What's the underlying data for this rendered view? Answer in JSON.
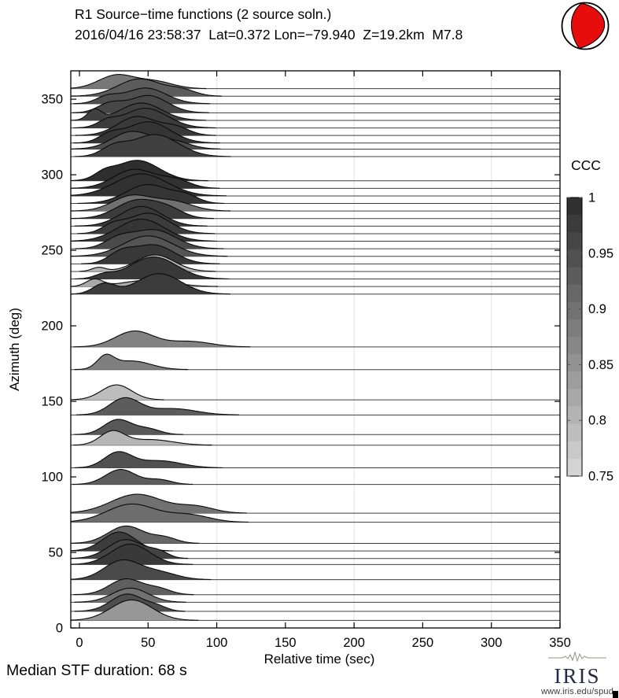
{
  "chart_data": {
    "type": "area",
    "title": "R1 Source−time functions (2 source soln.)",
    "subtitle": "2016/04/16 23:58:37  Lat=0.372 Lon=−79.940  Z=19.2km  M7.8",
    "xlabel": "Relative time (sec)",
    "ylabel": "Azimuth (deg)",
    "footer_note": "Median STF duration: 68 s",
    "x_axis": {
      "min": -6.3,
      "max": 350,
      "ticks": [
        0,
        50,
        100,
        150,
        200,
        250,
        300,
        350
      ],
      "gridlines": [
        100,
        200,
        300
      ]
    },
    "y_axis": {
      "min": 0,
      "max": 368.8,
      "ticks": [
        0,
        50,
        100,
        150,
        200,
        250,
        300,
        350
      ]
    },
    "colorbar": {
      "title": "CCC",
      "min": 0.75,
      "max": 1,
      "segments": 16,
      "ticks": [
        {
          "v": 1,
          "label": "1"
        },
        {
          "v": 0.95,
          "label": "0.95"
        },
        {
          "v": 0.9,
          "label": "0.9"
        },
        {
          "v": 0.85,
          "label": "0.85"
        },
        {
          "v": 0.8,
          "label": "0.8"
        },
        {
          "v": 0.75,
          "label": "0.75"
        }
      ],
      "color_dark": "#2b2b2b",
      "color_light": "#d9d9d9"
    },
    "beachball": {
      "red": "#e80d0d"
    },
    "traces": [
      {
        "az": 357,
        "ccc": 0.89,
        "bumps": [
          [
            27,
            13,
            17
          ],
          [
            55,
            13,
            9
          ]
        ]
      },
      {
        "az": 352,
        "ccc": 0.93,
        "bumps": [
          [
            44,
            16,
            22
          ],
          [
            75,
            10,
            7
          ]
        ]
      },
      {
        "az": 347,
        "ccc": 0.95,
        "bumps": [
          [
            48,
            15,
            20
          ],
          [
            20,
            8,
            8
          ]
        ]
      },
      {
        "az": 341,
        "ccc": 0.96,
        "bumps": [
          [
            50,
            14,
            22
          ],
          [
            22,
            9,
            11
          ]
        ]
      },
      {
        "az": 336,
        "ccc": 0.97,
        "bumps": [
          [
            11,
            5,
            13
          ],
          [
            45,
            15,
            22
          ]
        ]
      },
      {
        "az": 331,
        "ccc": 0.975,
        "bumps": [
          [
            48,
            16,
            25
          ],
          [
            20,
            7,
            7
          ]
        ]
      },
      {
        "az": 326,
        "ccc": 0.98,
        "bumps": [
          [
            42,
            14,
            24
          ],
          [
            70,
            10,
            10
          ]
        ]
      },
      {
        "az": 321,
        "ccc": 0.985,
        "bumps": [
          [
            50,
            16,
            27
          ],
          [
            22,
            8,
            9
          ]
        ]
      },
      {
        "az": 317,
        "ccc": 0.95,
        "bumps": [
          [
            38,
            14,
            22
          ],
          [
            68,
            12,
            10
          ]
        ]
      },
      {
        "az": 312,
        "ccc": 0.97,
        "bumps": [
          [
            55,
            17,
            28
          ],
          [
            25,
            9,
            11
          ]
        ]
      },
      {
        "az": 296,
        "ccc": 0.995,
        "bumps": [
          [
            42,
            16,
            26
          ],
          [
            18,
            7,
            7
          ]
        ]
      },
      {
        "az": 291,
        "ccc": 0.99,
        "bumps": [
          [
            40,
            15,
            24
          ],
          [
            70,
            11,
            10
          ]
        ]
      },
      {
        "az": 286,
        "ccc": 0.99,
        "bumps": [
          [
            45,
            19,
            28
          ]
        ]
      },
      {
        "az": 281,
        "ccc": 0.985,
        "bumps": [
          [
            50,
            16,
            24
          ],
          [
            78,
            9,
            8
          ]
        ]
      },
      {
        "az": 276,
        "ccc": 0.9,
        "bumps": [
          [
            38,
            14,
            19
          ],
          [
            68,
            14,
            12
          ]
        ]
      },
      {
        "az": 271,
        "ccc": 0.975,
        "bumps": [
          [
            42,
            15,
            23
          ],
          [
            65,
            11,
            10
          ]
        ]
      },
      {
        "az": 266,
        "ccc": 0.98,
        "bumps": [
          [
            45,
            15,
            25
          ]
        ]
      },
      {
        "az": 261,
        "ccc": 0.975,
        "bumps": [
          [
            50,
            15,
            26
          ],
          [
            24,
            8,
            9
          ]
        ]
      },
      {
        "az": 256,
        "ccc": 0.985,
        "bumps": [
          [
            45,
            17,
            28
          ]
        ]
      },
      {
        "az": 251,
        "ccc": 0.955,
        "bumps": [
          [
            54,
            16,
            24
          ],
          [
            28,
            10,
            11
          ]
        ]
      },
      {
        "az": 246,
        "ccc": 0.94,
        "bumps": [
          [
            50,
            18,
            26
          ]
        ]
      },
      {
        "az": 241,
        "ccc": 0.98,
        "bumps": [
          [
            54,
            15,
            24
          ],
          [
            30,
            9,
            12
          ]
        ]
      },
      {
        "az": 236,
        "ccc": 0.8,
        "bumps": [
          [
            55,
            14,
            21
          ],
          [
            14,
            5,
            5
          ]
        ]
      },
      {
        "az": 231,
        "ccc": 0.98,
        "bumps": [
          [
            54,
            17,
            28
          ],
          [
            18,
            7,
            5
          ]
        ]
      },
      {
        "az": 226,
        "ccc": 0.82,
        "bumps": [
          [
            11,
            6,
            9
          ],
          [
            50,
            18,
            8
          ]
        ]
      },
      {
        "az": 221,
        "ccc": 0.975,
        "bumps": [
          [
            18,
            8,
            13
          ],
          [
            58,
            16,
            26
          ]
        ]
      },
      {
        "az": 186,
        "ccc": 0.875,
        "bumps": [
          [
            40,
            14,
            20
          ],
          [
            80,
            16,
            7
          ]
        ]
      },
      {
        "az": 171,
        "ccc": 0.88,
        "bumps": [
          [
            19,
            6,
            15
          ],
          [
            38,
            14,
            11
          ]
        ]
      },
      {
        "az": 151,
        "ccc": 0.79,
        "bumps": [
          [
            27,
            11,
            19
          ]
        ]
      },
      {
        "az": 141,
        "ccc": 0.93,
        "bumps": [
          [
            33,
            11,
            21
          ],
          [
            68,
            17,
            8
          ]
        ]
      },
      {
        "az": 128,
        "ccc": 0.935,
        "bumps": [
          [
            28,
            10,
            19
          ],
          [
            50,
            9,
            7
          ]
        ]
      },
      {
        "az": 121,
        "ccc": 0.8,
        "bumps": [
          [
            24,
            9,
            17
          ],
          [
            52,
            16,
            7
          ]
        ]
      },
      {
        "az": 106,
        "ccc": 0.945,
        "bumps": [
          [
            28,
            10,
            19
          ],
          [
            58,
            16,
            9
          ]
        ]
      },
      {
        "az": 95,
        "ccc": 0.93,
        "bumps": [
          [
            30,
            11,
            19
          ],
          [
            58,
            9,
            6
          ]
        ]
      },
      {
        "az": 76,
        "ccc": 0.9,
        "bumps": [
          [
            42,
            19,
            24
          ],
          [
            85,
            13,
            8
          ]
        ]
      },
      {
        "az": 70,
        "ccc": 0.905,
        "bumps": [
          [
            38,
            18,
            23
          ],
          [
            80,
            15,
            9
          ]
        ]
      },
      {
        "az": 56,
        "ccc": 0.915,
        "bumps": [
          [
            34,
            13,
            22
          ],
          [
            62,
            9,
            7
          ]
        ]
      },
      {
        "az": 51,
        "ccc": 0.975,
        "bumps": [
          [
            29,
            12,
            24
          ]
        ]
      },
      {
        "az": 46,
        "ccc": 0.965,
        "bumps": [
          [
            34,
            13,
            24
          ],
          [
            58,
            7,
            7
          ]
        ]
      },
      {
        "az": 42,
        "ccc": 0.98,
        "bumps": [
          [
            37,
            14,
            26
          ]
        ]
      },
      {
        "az": 32,
        "ccc": 0.955,
        "bumps": [
          [
            31,
            13,
            24
          ],
          [
            58,
            13,
            9
          ]
        ]
      },
      {
        "az": 22,
        "ccc": 0.925,
        "bumps": [
          [
            34,
            12,
            20
          ],
          [
            58,
            9,
            7
          ]
        ]
      },
      {
        "az": 17,
        "ccc": 0.9,
        "bumps": [
          [
            37,
            13,
            18
          ]
        ]
      },
      {
        "az": 11,
        "ccc": 0.95,
        "bumps": [
          [
            35,
            12,
            22
          ],
          [
            57,
            7,
            5
          ]
        ]
      },
      {
        "az": 5,
        "ccc": 0.845,
        "bumps": [
          [
            38,
            15,
            26
          ]
        ]
      }
    ]
  },
  "logo": {
    "name": "IRIS",
    "url": "www.iris.edu/spud"
  }
}
